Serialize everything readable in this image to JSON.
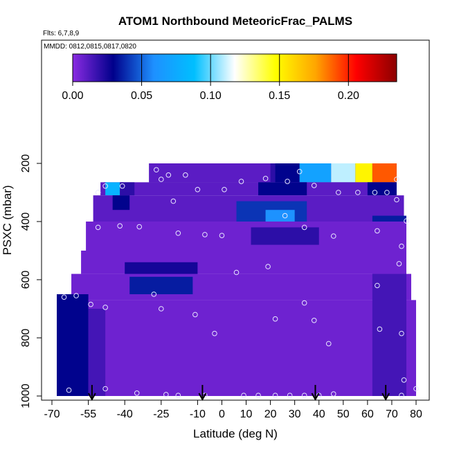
{
  "chart_data": {
    "type": "heatmap",
    "title": "ATOM1 Northbound MeteoricFrac_PALMS",
    "notes": [
      "Flts: 6,7,8,9",
      "MMDD: 0812,0815,0817,0820"
    ],
    "xlabel": "Latitude (deg N)",
    "ylabel": "PSXC (mbar)",
    "xlim": [
      -70,
      80
    ],
    "ylim": [
      1000,
      100
    ],
    "x_ticks": [
      -70,
      -55,
      -40,
      -25,
      -10,
      0,
      10,
      20,
      30,
      40,
      50,
      60,
      70,
      80
    ],
    "x_tick_labels": [
      "-70",
      "-55",
      "-40",
      "-25",
      "-10",
      "0",
      "10",
      "20",
      "30",
      "40",
      "50",
      "60",
      "70",
      "80"
    ],
    "y_ticks": [
      200,
      400,
      600,
      800,
      1000
    ],
    "y_tick_labels": [
      "200",
      "400",
      "600",
      "800",
      "1000"
    ],
    "colorbar": {
      "range": [
        0,
        0.235
      ],
      "ticks": [
        0,
        0.05,
        0.1,
        0.15,
        0.2
      ],
      "tick_labels": [
        "0.00",
        "0.05",
        "0.10",
        "0.15",
        "0.20"
      ],
      "colors": [
        "#8a2be2",
        "#00008b",
        "#1e90ff",
        "#00bfff",
        "#ffffff",
        "#ffff00",
        "#ffa500",
        "#ff0000",
        "#8b0000"
      ]
    },
    "cells": [
      {
        "lat": [
          -30,
          72
        ],
        "p": [
          200,
          265
        ],
        "value": 0.02
      },
      {
        "lat": [
          -30,
          20
        ],
        "p": [
          200,
          265
        ],
        "value": 0.01
      },
      {
        "lat": [
          22,
          32
        ],
        "p": [
          200,
          265
        ],
        "value": 0.03
      },
      {
        "lat": [
          32,
          45
        ],
        "p": [
          200,
          265
        ],
        "value": 0.07
      },
      {
        "lat": [
          45,
          55
        ],
        "p": [
          200,
          265
        ],
        "value": 0.11
      },
      {
        "lat": [
          55,
          62
        ],
        "p": [
          200,
          265
        ],
        "value": 0.15
      },
      {
        "lat": [
          62,
          72
        ],
        "p": [
          200,
          265
        ],
        "value": 0.19
      },
      {
        "lat": [
          -50,
          70
        ],
        "p": [
          265,
          310
        ],
        "value": 0.01
      },
      {
        "lat": [
          -48,
          -42
        ],
        "p": [
          265,
          310
        ],
        "value": 0.08
      },
      {
        "lat": [
          -42,
          -36
        ],
        "p": [
          265,
          310
        ],
        "value": 0.02
      },
      {
        "lat": [
          15,
          35
        ],
        "p": [
          265,
          310
        ],
        "value": 0.03
      },
      {
        "lat": [
          60,
          72
        ],
        "p": [
          265,
          310
        ],
        "value": 0.03
      },
      {
        "lat": [
          -53,
          75
        ],
        "p": [
          310,
          400
        ],
        "value": 0.01
      },
      {
        "lat": [
          -45,
          -38
        ],
        "p": [
          310,
          360
        ],
        "value": 0.03
      },
      {
        "lat": [
          6,
          35
        ],
        "p": [
          330,
          420
        ],
        "value": 0.04
      },
      {
        "lat": [
          18,
          30
        ],
        "p": [
          360,
          410
        ],
        "value": 0.06
      },
      {
        "lat": [
          62,
          76
        ],
        "p": [
          380,
          430
        ],
        "value": 0.035
      },
      {
        "lat": [
          -56,
          76
        ],
        "p": [
          400,
          500
        ],
        "value": 0.006
      },
      {
        "lat": [
          12,
          40
        ],
        "p": [
          420,
          480
        ],
        "value": 0.02
      },
      {
        "lat": [
          -58,
          76
        ],
        "p": [
          500,
          580
        ],
        "value": 0.006
      },
      {
        "lat": [
          -40,
          -10
        ],
        "p": [
          540,
          590
        ],
        "value": 0.025
      },
      {
        "lat": [
          -62,
          78
        ],
        "p": [
          580,
          670
        ],
        "value": 0.006
      },
      {
        "lat": [
          -38,
          -12
        ],
        "p": [
          590,
          650
        ],
        "value": 0.035
      },
      {
        "lat": [
          -68,
          80
        ],
        "p": [
          670,
          1000
        ],
        "value": 0.006
      },
      {
        "lat": [
          -68,
          -55
        ],
        "p": [
          650,
          1000
        ],
        "value": 0.03
      },
      {
        "lat": [
          -55,
          -48
        ],
        "p": [
          700,
          1000
        ],
        "value": 0.015
      },
      {
        "lat": [
          62,
          76
        ],
        "p": [
          580,
          1000
        ],
        "value": 0.015
      }
    ],
    "obs_points": [
      [
        -27,
        222
      ],
      [
        -22,
        240
      ],
      [
        -15,
        240
      ],
      [
        -25,
        255
      ],
      [
        -10,
        290
      ],
      [
        1,
        290
      ],
      [
        8,
        262
      ],
      [
        18,
        252
      ],
      [
        27,
        262
      ],
      [
        32,
        228
      ],
      [
        38,
        276
      ],
      [
        48,
        300
      ],
      [
        56,
        300
      ],
      [
        63,
        300
      ],
      [
        68,
        300
      ],
      [
        72,
        255
      ],
      [
        72,
        325
      ],
      [
        -48,
        278
      ],
      [
        -51,
        300
      ],
      [
        -20,
        330
      ],
      [
        -41,
        278
      ],
      [
        26,
        380
      ],
      [
        34,
        420
      ],
      [
        46,
        450
      ],
      [
        64,
        432
      ],
      [
        76,
        398
      ],
      [
        -51,
        420
      ],
      [
        -42,
        415
      ],
      [
        -34,
        418
      ],
      [
        -18,
        440
      ],
      [
        -7,
        445
      ],
      [
        0,
        448
      ],
      [
        74,
        485
      ],
      [
        73,
        545
      ],
      [
        19,
        555
      ],
      [
        6,
        575
      ],
      [
        64,
        620
      ],
      [
        -28,
        650
      ],
      [
        -60,
        655
      ],
      [
        -65,
        660
      ],
      [
        -54,
        685
      ],
      [
        -48,
        695
      ],
      [
        -25,
        700
      ],
      [
        -11,
        720
      ],
      [
        34,
        680
      ],
      [
        38,
        740
      ],
      [
        22,
        735
      ],
      [
        -3,
        785
      ],
      [
        44,
        820
      ],
      [
        65,
        770
      ],
      [
        74,
        785
      ],
      [
        75,
        945
      ],
      [
        80,
        975
      ],
      [
        -63,
        980
      ],
      [
        -48,
        975
      ],
      [
        -35,
        990
      ],
      [
        -23,
        995
      ],
      [
        -18,
        998
      ],
      [
        -7,
        998
      ],
      [
        9,
        998
      ],
      [
        15,
        998
      ],
      [
        22,
        998
      ],
      [
        28,
        998
      ],
      [
        34,
        998
      ],
      [
        40,
        998
      ],
      [
        46,
        993
      ],
      [
        74,
        998
      ]
    ],
    "arrows": [
      -53.5,
      -8,
      38.5,
      67.5
    ]
  }
}
